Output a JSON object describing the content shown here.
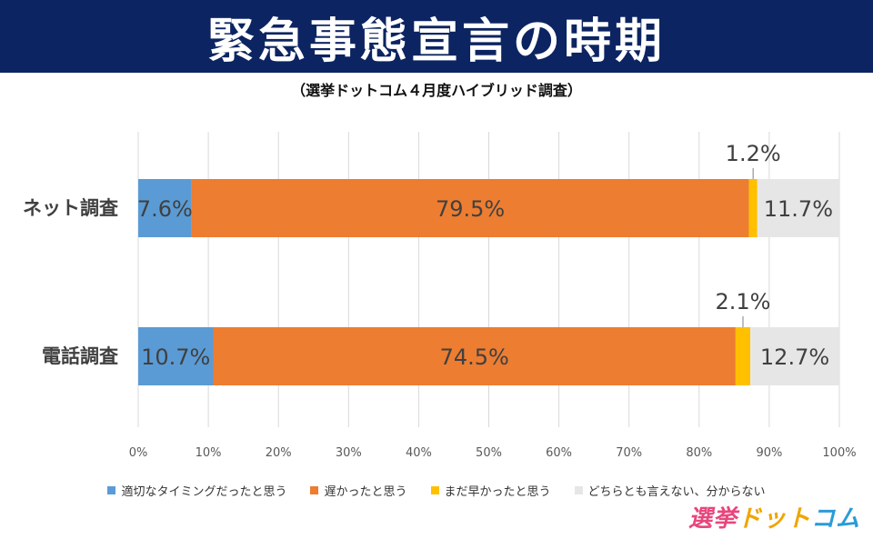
{
  "title": "緊急事態宣言の時期",
  "subtitle": "（選挙ドットコム４月度ハイブリッド調査）",
  "watermark": {
    "part1": "選挙",
    "part2": "ドット",
    "part3": "コム"
  },
  "chart_data": {
    "type": "bar",
    "orientation": "horizontal",
    "stacked": true,
    "normalized": true,
    "title": "緊急事態宣言の時期",
    "subtitle": "（選挙ドットコム４月度ハイブリッド調査）",
    "categories": [
      "ネット調査",
      "電話調査"
    ],
    "series": [
      {
        "name": "適切なタイミングだったと思う",
        "color": "#5b9bd5",
        "values": [
          7.6,
          10.7
        ],
        "labels": [
          "7.6%",
          "10.7%"
        ]
      },
      {
        "name": "遅かったと思う",
        "color": "#ed7d31",
        "values": [
          79.5,
          74.5
        ],
        "labels": [
          "79.5%",
          "74.5%"
        ]
      },
      {
        "name": "まだ早かったと思う",
        "color": "#ffc000",
        "values": [
          1.2,
          2.1
        ],
        "labels": [
          "1.2%",
          "2.1%"
        ]
      },
      {
        "name": "どちらとも言えない、分からない",
        "color": "#e7e6e6",
        "values": [
          11.7,
          12.7
        ],
        "labels": [
          "11.7%",
          "12.7%"
        ]
      }
    ],
    "xlim": [
      0,
      100
    ],
    "xticks": [
      "0%",
      "10%",
      "20%",
      "30%",
      "40%",
      "50%",
      "60%",
      "70%",
      "80%",
      "90%",
      "100%"
    ],
    "grid": true,
    "legend_position": "bottom"
  }
}
